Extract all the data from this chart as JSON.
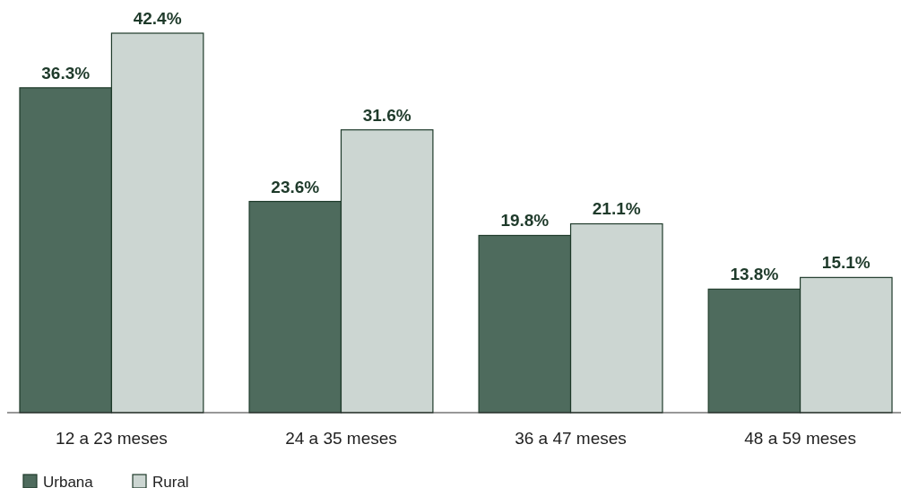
{
  "chart_data": {
    "type": "bar",
    "categories": [
      "12 a 23 meses",
      "24 a 35 meses",
      "36 a 47 meses",
      "48 a 59 meses"
    ],
    "series": [
      {
        "name": "Urbana",
        "color": "#4e6b5d",
        "values": [
          36.3,
          23.6,
          19.8,
          13.8
        ],
        "value_labels": [
          "36.3%",
          "23.6%",
          "19.8%",
          "13.8%"
        ]
      },
      {
        "name": "Rural",
        "color": "#ccd6d2",
        "values": [
          42.4,
          31.6,
          21.1,
          15.1
        ],
        "value_labels": [
          "42.4%",
          "31.6%",
          "21.1%",
          "15.1%"
        ]
      }
    ],
    "legend": "bottom left"
  }
}
